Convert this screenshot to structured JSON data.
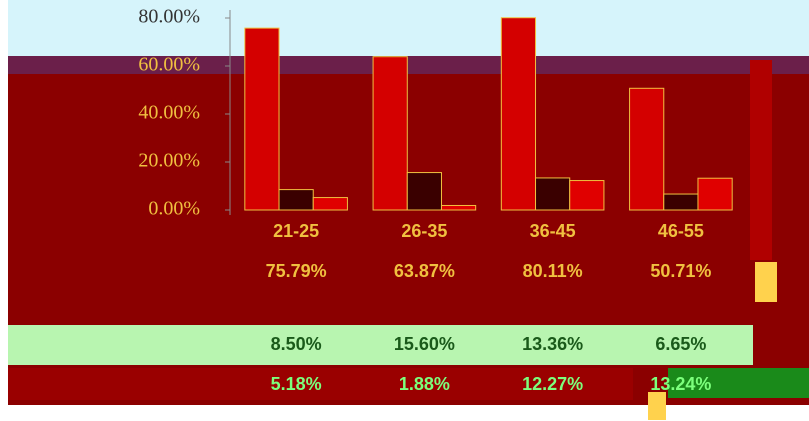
{
  "chart_data": {
    "type": "bar",
    "categories": [
      "21-25",
      "26-35",
      "36-45",
      "46-55"
    ],
    "series": [
      {
        "color": "#d40000",
        "values": [
          75.79,
          63.87,
          80.11,
          50.71
        ]
      },
      {
        "color": "#3a0000",
        "values": [
          8.5,
          15.6,
          13.36,
          6.65
        ]
      },
      {
        "color": "#e00000",
        "values": [
          5.18,
          1.88,
          12.27,
          13.24
        ]
      }
    ],
    "ylim": [
      0,
      80
    ],
    "yticks": [
      {
        "value": 0,
        "label": "0.00%"
      },
      {
        "value": 20,
        "label": "20.00%"
      },
      {
        "value": 40,
        "label": "40.00%"
      },
      {
        "value": 60,
        "label": "60.00%"
      },
      {
        "value": 80,
        "label": "80.00%"
      }
    ],
    "value_labels": [
      [
        "75.79%",
        "63.87%",
        "80.11%",
        "50.71%"
      ],
      [
        "8.50%",
        "15.60%",
        "13.36%",
        "6.65%"
      ],
      [
        "5.18%",
        "1.88%",
        "12.27%",
        "13.24%"
      ]
    ]
  }
}
